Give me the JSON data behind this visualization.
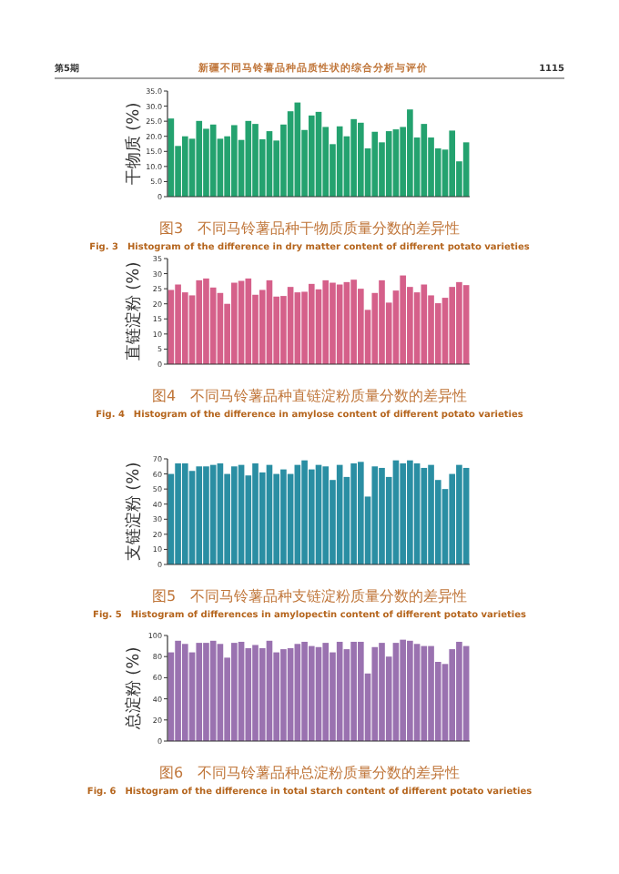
{
  "chart_data": [
    {
      "type": "other",
      "annotations": [
        "第5期",
        "新疆不同马铃薯品种品质性状的综合分析与评价",
        "1115"
      ]
    },
    {
      "type": "bar",
      "title": "图3　不同马铃薯品种干物质质量分数的差异性",
      "subtitle": "Fig. 3　Histogram of the difference in dry matter content of different potato varieties",
      "ylabel": "干物质 (%)",
      "color": "#24a26f",
      "categories": [
        null,
        null,
        null,
        null,
        null,
        null,
        null,
        null,
        null,
        null,
        null,
        null,
        null,
        null,
        null,
        null,
        null,
        null,
        null,
        null,
        null,
        null,
        null,
        null,
        null,
        null,
        null,
        null,
        null,
        null,
        null,
        null,
        null,
        null,
        null,
        null,
        null,
        null,
        null,
        null,
        null,
        null,
        null
      ],
      "values": [
        25.9,
        16.8,
        20,
        19.2,
        25.1,
        22.5,
        23.9,
        19.2,
        20,
        23.7,
        18.8,
        25.1,
        24.1,
        19,
        21.7,
        18.6,
        23.9,
        28.3,
        31.2,
        22.1,
        26.9,
        28.1,
        23.1,
        17.4,
        23.3,
        20,
        25.7,
        24.5,
        16,
        21.5,
        18,
        21.7,
        22.3,
        23.1,
        28.9,
        19.6,
        24.1,
        19.6,
        16,
        15.6,
        21.9,
        11.7,
        18
      ],
      "ylim": [
        0,
        35
      ],
      "yticks": [
        0,
        {
          "value": 5,
          "label": "5.0"
        },
        {
          "value": 10,
          "label": "10.0"
        },
        {
          "value": 15,
          "label": "15.0"
        },
        {
          "value": 20,
          "label": "20.0"
        },
        {
          "value": 25,
          "label": "25.0"
        },
        {
          "value": 30,
          "label": "30.0"
        },
        {
          "value": 35,
          "label": "35.0"
        }
      ]
    },
    {
      "type": "bar",
      "title": "图4　不同马铃薯品种直链淀粉质量分数的差异性",
      "subtitle": "Fig. 4　Histogram of the difference in amylose content of different potato varieties",
      "ylabel": "直链淀粉 (%)",
      "color": "#d5608a",
      "categories": [
        null,
        null,
        null,
        null,
        null,
        null,
        null,
        null,
        null,
        null,
        null,
        null,
        null,
        null,
        null,
        null,
        null,
        null,
        null,
        null,
        null,
        null,
        null,
        null,
        null,
        null,
        null,
        null,
        null,
        null,
        null,
        null,
        null,
        null,
        null,
        null,
        null,
        null,
        null,
        null,
        null,
        null,
        null
      ],
      "values": [
        24.6,
        26.4,
        23.8,
        22.8,
        27.8,
        28.4,
        25.4,
        23.6,
        20,
        27,
        27.6,
        28.4,
        23,
        24.6,
        27.8,
        22.4,
        22.6,
        25.6,
        23.8,
        24,
        26.6,
        24.8,
        27.8,
        27,
        26.4,
        27.2,
        28,
        25,
        18,
        23.6,
        27.8,
        20.4,
        24.4,
        29.4,
        25.6,
        23.8,
        26.4,
        22.8,
        20.2,
        22,
        25.6,
        27.2,
        26.2
      ],
      "ylim": [
        0,
        35
      ],
      "yticks": [
        0,
        5,
        10,
        15,
        20,
        25,
        30,
        35
      ]
    },
    {
      "type": "bar",
      "title": "图5　不同马铃薯品种支链淀粉质量分数的差异性",
      "subtitle": "Fig. 5　Histogram of differences in amylopectin content of different potato varieties",
      "ylabel": "支链淀粉 (%)",
      "color": "#2a8ea3",
      "categories": [
        null,
        null,
        null,
        null,
        null,
        null,
        null,
        null,
        null,
        null,
        null,
        null,
        null,
        null,
        null,
        null,
        null,
        null,
        null,
        null,
        null,
        null,
        null,
        null,
        null,
        null,
        null,
        null,
        null,
        null,
        null,
        null,
        null,
        null,
        null,
        null,
        null,
        null,
        null,
        null,
        null,
        null,
        null
      ],
      "values": [
        60,
        67,
        67,
        62,
        65,
        65,
        66,
        67,
        60,
        65,
        66,
        59,
        67,
        61,
        66,
        60,
        63,
        60,
        66,
        69,
        63,
        66,
        65,
        56,
        66,
        58,
        67,
        68,
        45,
        65,
        64,
        58,
        69,
        67,
        69,
        67,
        64,
        66,
        56,
        50,
        60,
        66,
        64
      ],
      "ylim": [
        0,
        70
      ],
      "yticks": [
        0,
        10,
        20,
        30,
        40,
        50,
        60,
        70
      ]
    },
    {
      "type": "bar",
      "title": "图6　不同马铃薯品种总淀粉质量分数的差异性",
      "subtitle": "Fig. 6　Histogram of the difference in total starch content of different potato varieties",
      "ylabel": "总淀粉 (%)",
      "color": "#9a72b0",
      "categories": [
        null,
        null,
        null,
        null,
        null,
        null,
        null,
        null,
        null,
        null,
        null,
        null,
        null,
        null,
        null,
        null,
        null,
        null,
        null,
        null,
        null,
        null,
        null,
        null,
        null,
        null,
        null,
        null,
        null,
        null,
        null,
        null,
        null,
        null,
        null,
        null,
        null,
        null,
        null,
        null,
        null,
        null,
        null
      ],
      "values": [
        84,
        95,
        92,
        84,
        93,
        93,
        95,
        92,
        79,
        93,
        94,
        88,
        91,
        88,
        95,
        84,
        87,
        88,
        92,
        94,
        90,
        89,
        93,
        84,
        94,
        87,
        94,
        94,
        64,
        89,
        93,
        80,
        93,
        96,
        95,
        92,
        90,
        90,
        75,
        73,
        87,
        94,
        90
      ],
      "ylim": [
        0,
        100
      ],
      "yticks": [
        0,
        20,
        40,
        60,
        80,
        100
      ]
    }
  ]
}
